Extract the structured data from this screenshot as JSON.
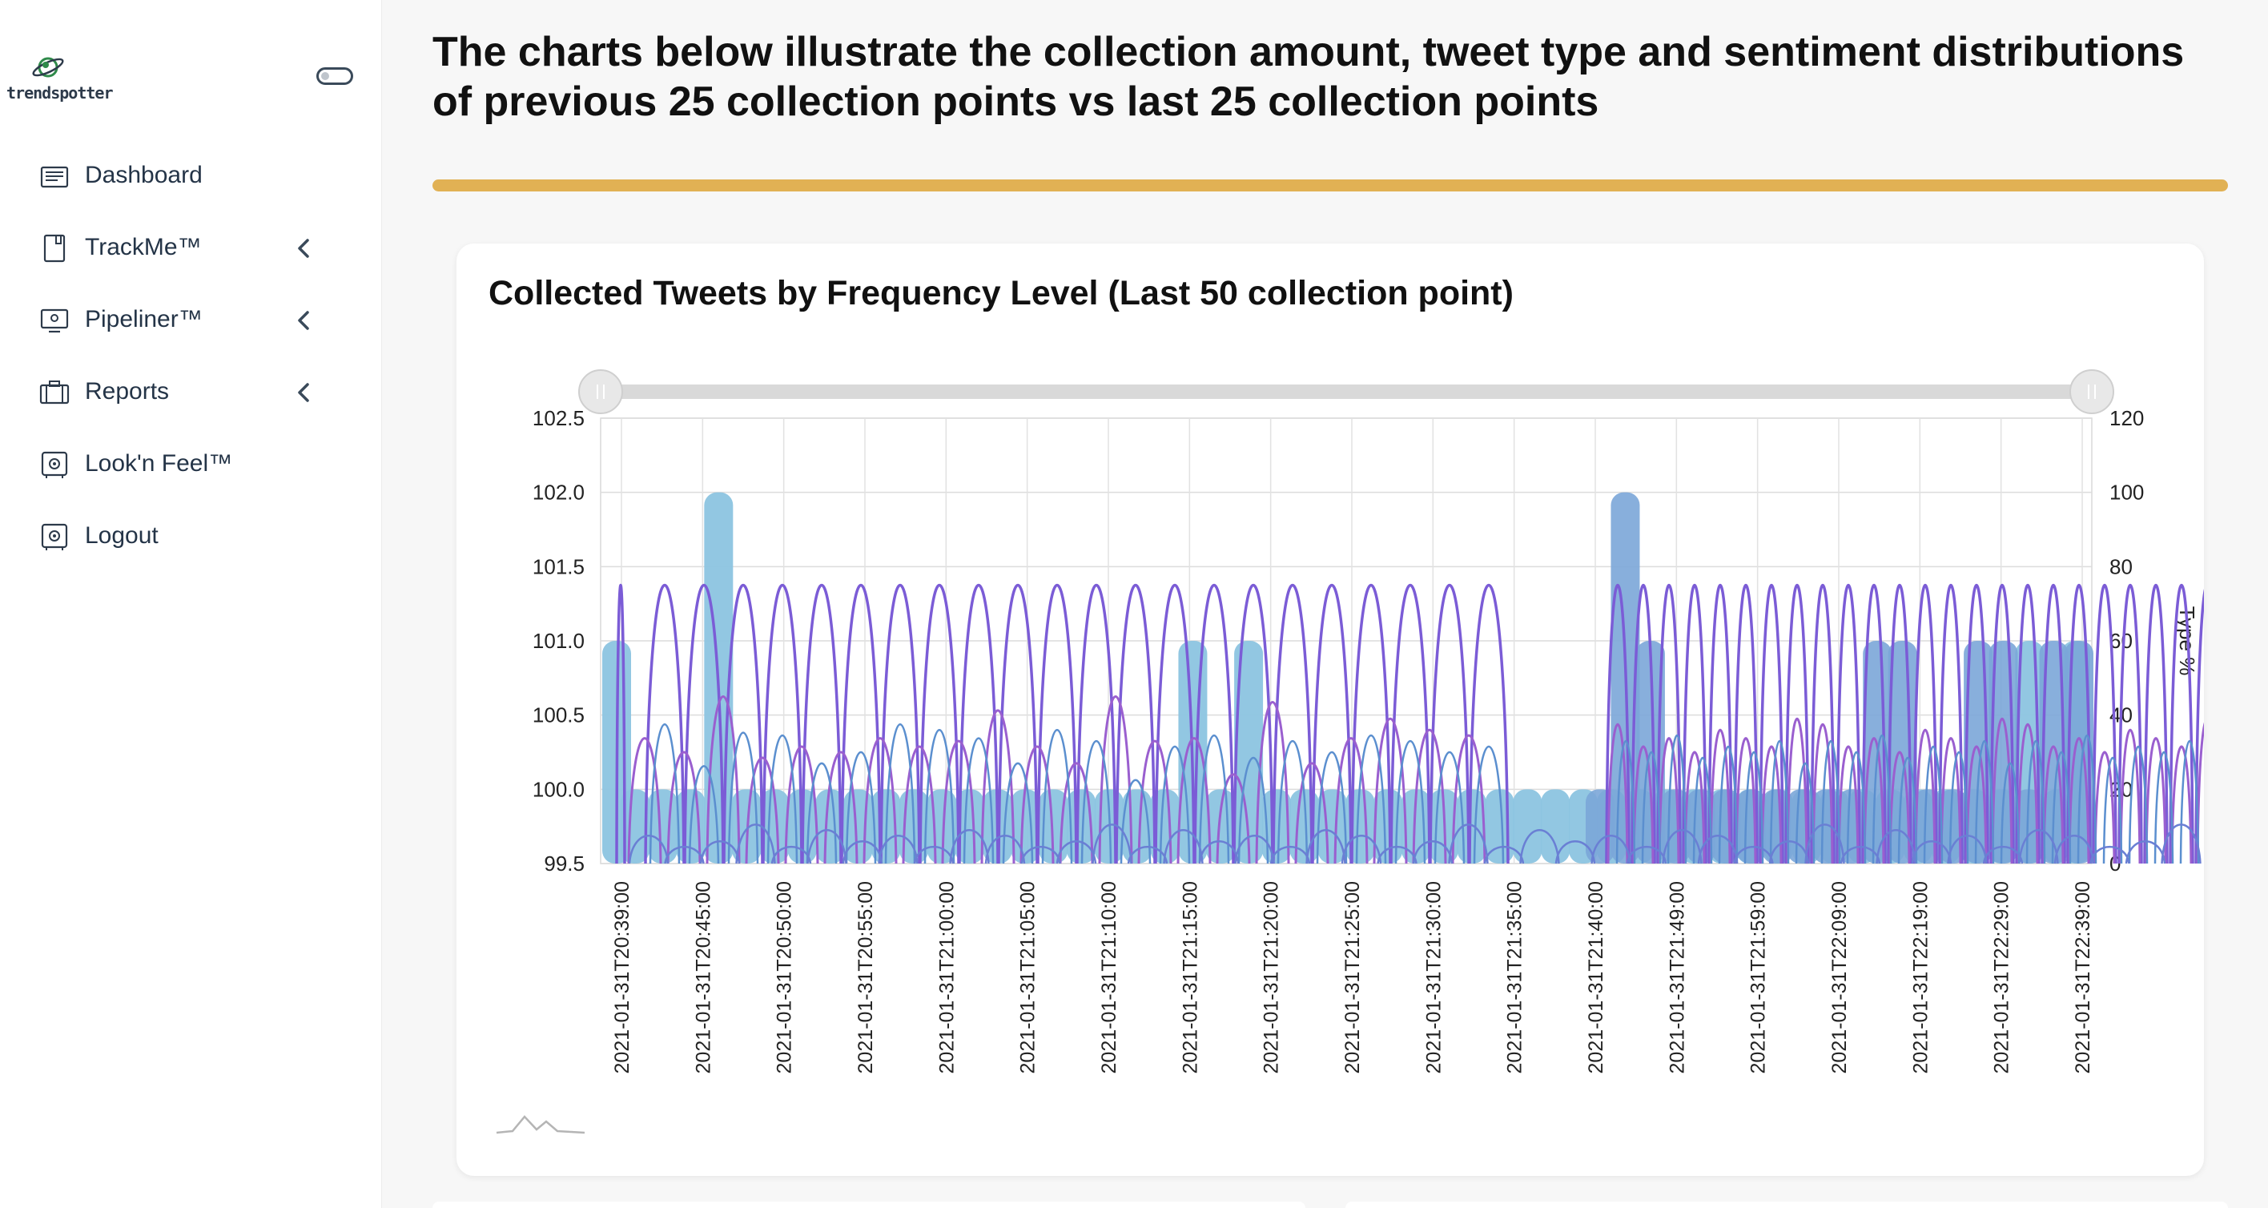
{
  "app": {
    "logo_text": "trendspotter"
  },
  "sidebar": {
    "items": [
      {
        "label": "Dashboard",
        "icon": "dashboard-icon",
        "has_submenu": false
      },
      {
        "label": "TrackMe™",
        "icon": "notebook-icon",
        "has_submenu": true
      },
      {
        "label": "Pipeliner™",
        "icon": "monitor-icon",
        "has_submenu": true
      },
      {
        "label": "Reports",
        "icon": "briefcase-icon",
        "has_submenu": true
      },
      {
        "label": "Look'n Feel™",
        "icon": "safe-icon",
        "has_submenu": false
      },
      {
        "label": "Logout",
        "icon": "safe-icon",
        "has_submenu": false
      }
    ]
  },
  "main": {
    "title": "The charts below illustrate the collection amount, tweet type and sentiment distributions of previous 25 collection points vs last 25 collection points",
    "accent_color": "#e1b154"
  },
  "chart_data": {
    "type": "bar",
    "title": "Collected Tweets by Frequency Level (Last 50 collection point)",
    "ylim": [
      99.5,
      102.5
    ],
    "yticks": [
      "102.5",
      "102.0",
      "101.5",
      "101.0",
      "100.5",
      "100.0",
      "99.5"
    ],
    "y2label": "Type %",
    "y2lim": [
      0,
      120
    ],
    "y2ticks": [
      "120",
      "100",
      "80",
      "60",
      "40",
      "20",
      "0"
    ],
    "x_tick_labels": [
      "2021-01-31T20:39:00",
      "2021-01-31T20:45:00",
      "2021-01-31T20:50:00",
      "2021-01-31T20:55:00",
      "2021-01-31T21:00:00",
      "2021-01-31T21:05:00",
      "2021-01-31T21:10:00",
      "2021-01-31T21:15:00",
      "2021-01-31T21:20:00",
      "2021-01-31T21:25:00",
      "2021-01-31T21:30:00",
      "2021-01-31T21:35:00",
      "2021-01-31T21:40:00",
      "2021-01-31T21:49:00",
      "2021-01-31T21:59:00",
      "2021-01-31T22:09:00",
      "2021-01-31T22:19:00",
      "2021-01-31T22:29:00",
      "2021-01-31T22:39:00"
    ],
    "series": [
      {
        "values": [
          101,
          100,
          100,
          100,
          102,
          100,
          100,
          100,
          100,
          100,
          100,
          100,
          100,
          100,
          100,
          100,
          100,
          100,
          100,
          100,
          100,
          101,
          100,
          101,
          100,
          100,
          100,
          100,
          100,
          100,
          100,
          100,
          100,
          100,
          100,
          100,
          100,
          100,
          100,
          100,
          100,
          100,
          100,
          100,
          100,
          100,
          100,
          100,
          100,
          100,
          100,
          101,
          100,
          101
        ],
        "color": "#8cc4e0"
      },
      {
        "values": [
          100,
          102,
          101,
          100,
          100,
          100,
          100,
          100,
          100,
          100,
          100,
          101,
          101,
          100,
          100,
          101,
          101,
          100,
          101,
          101
        ],
        "color": "#7ba6d8"
      }
    ],
    "line_colors": [
      "#7b5cd6",
      "#9a5fcf",
      "#5b8fcf",
      "#6a7fd4"
    ],
    "slider_track_color": "#d9d9d9"
  }
}
